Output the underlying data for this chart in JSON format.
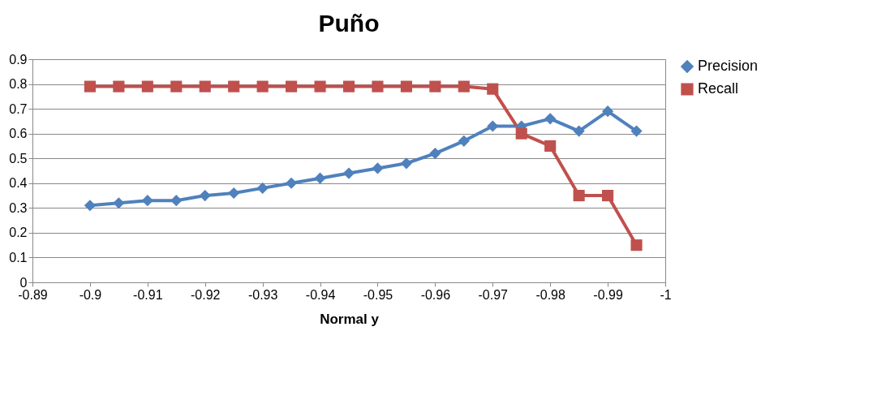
{
  "chart_data": {
    "type": "line",
    "title": "Puño",
    "xlabel": "Normal y",
    "x": [
      -0.9,
      -0.905,
      -0.91,
      -0.915,
      -0.92,
      -0.925,
      -0.93,
      -0.935,
      -0.94,
      -0.945,
      -0.95,
      -0.955,
      -0.96,
      -0.965,
      -0.97,
      -0.975,
      -0.98,
      -0.985,
      -0.99,
      -0.995
    ],
    "series": [
      {
        "name": "Precision",
        "color": "#4f81bd",
        "marker": "diamond",
        "values": [
          0.31,
          0.32,
          0.33,
          0.33,
          0.35,
          0.36,
          0.38,
          0.4,
          0.42,
          0.44,
          0.46,
          0.48,
          0.52,
          0.57,
          0.63,
          0.63,
          0.66,
          0.61,
          0.69,
          0.61
        ]
      },
      {
        "name": "Recall",
        "color": "#c0504d",
        "marker": "square",
        "values": [
          0.79,
          0.79,
          0.79,
          0.79,
          0.79,
          0.79,
          0.79,
          0.79,
          0.79,
          0.79,
          0.79,
          0.79,
          0.79,
          0.79,
          0.78,
          0.6,
          0.55,
          0.35,
          0.35,
          0.15
        ]
      }
    ],
    "xlim": [
      -0.89,
      -1
    ],
    "xticks": [
      -0.89,
      -0.9,
      -0.91,
      -0.92,
      -0.93,
      -0.94,
      -0.95,
      -0.96,
      -0.97,
      -0.98,
      -0.99,
      -1
    ],
    "ylim": [
      0,
      0.9
    ],
    "yticks": [
      0,
      0.1,
      0.2,
      0.3,
      0.4,
      0.5,
      0.6,
      0.7,
      0.8,
      0.9
    ],
    "grid": "y",
    "legend": "right",
    "line_style": "solid"
  }
}
